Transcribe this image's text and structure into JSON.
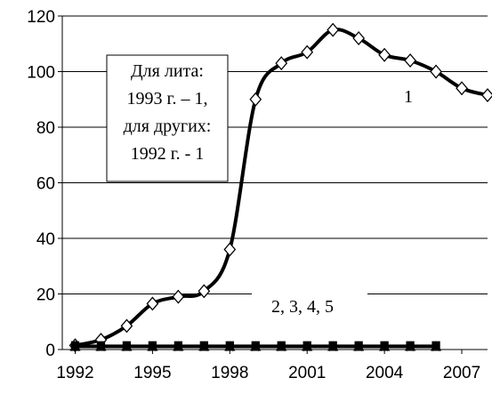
{
  "chart_data": {
    "type": "line",
    "x": [
      1992,
      1993,
      1994,
      1995,
      1996,
      1997,
      1998,
      1999,
      2000,
      2001,
      2002,
      2003,
      2004,
      2005,
      2006,
      2007,
      2008
    ],
    "xlim": [
      1991.5,
      2008
    ],
    "xticks": [
      1992,
      1995,
      1998,
      2001,
      2004,
      2007
    ],
    "ylim": [
      0,
      120
    ],
    "yticks": [
      0,
      20,
      40,
      60,
      80,
      100,
      120
    ],
    "grid": true,
    "series": [
      {
        "name": "1",
        "color": "#000000",
        "marker": "diamond",
        "values": [
          1.5,
          3.5,
          8.5,
          16.5,
          19,
          21,
          36,
          90,
          103,
          107,
          115,
          112,
          106,
          104,
          100,
          94,
          91.5
        ]
      },
      {
        "color": "#000000",
        "marker": "square",
        "values": [
          1.5,
          1.5,
          1.5,
          1.5,
          1.5,
          1.5,
          1.5,
          1.5,
          1.5,
          1.5,
          1.5,
          1.5,
          1.5,
          1.5,
          1.5,
          null,
          null
        ]
      },
      {
        "color": "#000000",
        "marker": "triangle",
        "values": [
          1,
          1,
          1,
          1,
          1,
          1,
          1,
          1,
          1,
          1,
          1,
          1,
          1,
          1,
          1,
          null,
          null
        ]
      },
      {
        "color": "#000000",
        "marker": "x",
        "values": [
          0.8,
          0.8,
          0.8,
          0.8,
          0.8,
          0.8,
          0.8,
          0.8,
          0.8,
          0.8,
          0.8,
          0.8,
          0.8,
          0.8,
          0.8,
          null,
          null
        ]
      },
      {
        "color": "#000000",
        "marker": "star",
        "values": [
          1.2,
          1.2,
          1.2,
          1.2,
          1.2,
          1.2,
          1.2,
          1.2,
          1.2,
          1.2,
          1.2,
          1.2,
          1.2,
          1.2,
          1.2,
          null,
          null
        ]
      }
    ],
    "annotations": [
      "Для лита:",
      "1993 г. – 1,",
      "для других:",
      "1992 г. - 1",
      "2, 3, 4, 5"
    ]
  }
}
